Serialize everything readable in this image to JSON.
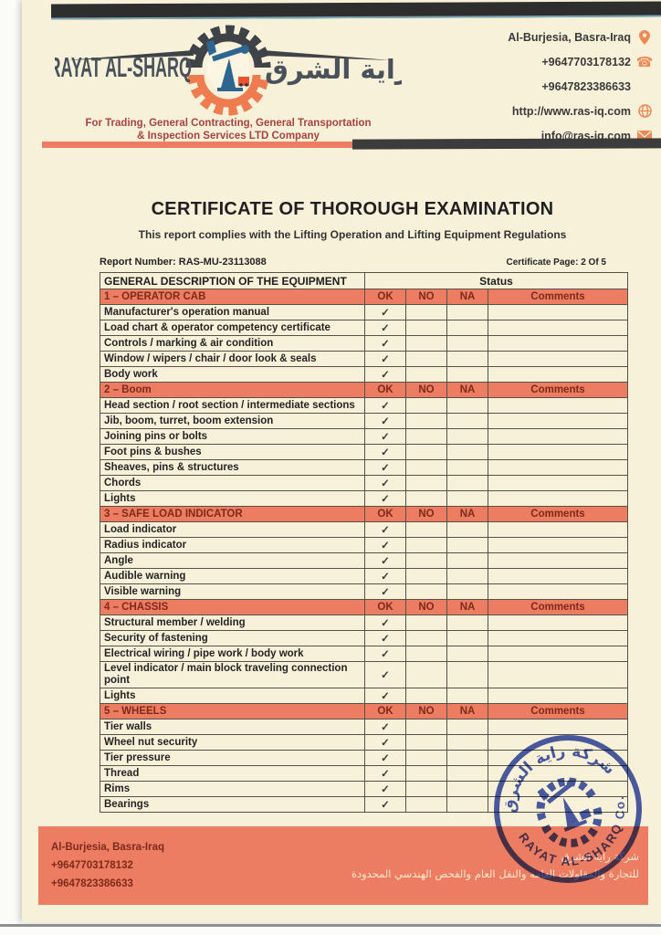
{
  "colors": {
    "accent_salmon": "#ed7d62",
    "maroon": "#7d2a1a",
    "stamp_blue": "#3b4fae",
    "page_cream": "#f8f1da",
    "dark_bar": "#2e2e2e",
    "tagline_red": "#a8433c",
    "logo_slate": "#49525b",
    "logo_orange": "#ef7b50",
    "pump_blue": "#2f6690"
  },
  "header": {
    "logo": {
      "latin": "RAYAT AL-SHARQ",
      "arabic": "راية الشرق",
      "tagline_line1": "For Trading, General Contracting, General Transportation",
      "tagline_line2": "& Inspection Services LTD Company"
    },
    "contact": [
      {
        "text": "Al-Burjesia, Basra-Iraq",
        "icon": "location-pin-icon"
      },
      {
        "text": "+9647703178132",
        "icon": "phone-icon"
      },
      {
        "text": "+9647823386633",
        "icon": ""
      },
      {
        "text": "http://www.ras-iq.com",
        "icon": "globe-icon"
      },
      {
        "text": "info@ras-iq.com",
        "icon": "envelope-icon"
      }
    ]
  },
  "title": "CERTIFICATE OF THOROUGH EXAMINATION",
  "subtitle": "This report complies with the Lifting Operation and Lifting Equipment Regulations",
  "report": {
    "number_label": "Report Number:",
    "number": "RAS-MU-23113088",
    "page_label": "Certificate Page:",
    "page": "2 Of 5"
  },
  "table": {
    "desc_header": "GENERAL DESCRIPTION OF THE EQUIPMENT",
    "status_header": "Status",
    "columns": [
      "OK",
      "NO",
      "NA",
      "Comments"
    ],
    "sections": [
      {
        "title": "1 – OPERATOR CAB",
        "rows": [
          {
            "label": "Manufacturer's operation manual",
            "ok": "✓",
            "no": "",
            "na": "",
            "comments": ""
          },
          {
            "label": "Load chart & operator competency certificate",
            "ok": "✓",
            "no": "",
            "na": "",
            "comments": ""
          },
          {
            "label": "Controls / marking & air condition",
            "ok": "✓",
            "no": "",
            "na": "",
            "comments": ""
          },
          {
            "label": "Window / wipers / chair / door look & seals",
            "ok": "✓",
            "no": "",
            "na": "",
            "comments": ""
          },
          {
            "label": "Body work",
            "ok": "✓",
            "no": "",
            "na": "",
            "comments": ""
          }
        ]
      },
      {
        "title": "2 – Boom",
        "rows": [
          {
            "label": "Head section / root section / intermediate sections",
            "ok": "✓",
            "no": "",
            "na": "",
            "comments": ""
          },
          {
            "label": "Jib, boom, turret, boom extension",
            "ok": "✓",
            "no": "",
            "na": "",
            "comments": ""
          },
          {
            "label": "Joining pins or bolts",
            "ok": "✓",
            "no": "",
            "na": "",
            "comments": ""
          },
          {
            "label": "Foot pins & bushes",
            "ok": "✓",
            "no": "",
            "na": "",
            "comments": ""
          },
          {
            "label": "Sheaves, pins & structures",
            "ok": "✓",
            "no": "",
            "na": "",
            "comments": ""
          },
          {
            "label": "Chords",
            "ok": "✓",
            "no": "",
            "na": "",
            "comments": ""
          },
          {
            "label": "Lights",
            "ok": "✓",
            "no": "",
            "na": "",
            "comments": ""
          }
        ]
      },
      {
        "title": "3 – SAFE LOAD INDICATOR",
        "rows": [
          {
            "label": "Load indicator",
            "ok": "✓",
            "no": "",
            "na": "",
            "comments": ""
          },
          {
            "label": "Radius indicator",
            "ok": "✓",
            "no": "",
            "na": "",
            "comments": ""
          },
          {
            "label": "Angle",
            "ok": "✓",
            "no": "",
            "na": "",
            "comments": ""
          },
          {
            "label": "Audible warning",
            "ok": "✓",
            "no": "",
            "na": "",
            "comments": ""
          },
          {
            "label": "Visible warning",
            "ok": "✓",
            "no": "",
            "na": "",
            "comments": ""
          }
        ]
      },
      {
        "title": "4 – CHASSIS",
        "rows": [
          {
            "label": "Structural member / welding",
            "ok": "✓",
            "no": "",
            "na": "",
            "comments": ""
          },
          {
            "label": "Security of fastening",
            "ok": "✓",
            "no": "",
            "na": "",
            "comments": ""
          },
          {
            "label": "Electrical wiring / pipe work / body work",
            "ok": "✓",
            "no": "",
            "na": "",
            "comments": ""
          },
          {
            "label": "Level indicator / main block traveling connection point",
            "ok": "✓",
            "no": "",
            "na": "",
            "comments": "",
            "tall": true
          },
          {
            "label": "Lights",
            "ok": "✓",
            "no": "",
            "na": "",
            "comments": ""
          }
        ]
      },
      {
        "title": "5 – WHEELS",
        "rows": [
          {
            "label": "Tier walls",
            "ok": "✓",
            "no": "",
            "na": "",
            "comments": ""
          },
          {
            "label": "Wheel nut security",
            "ok": "✓",
            "no": "",
            "na": "",
            "comments": ""
          },
          {
            "label": "Tier pressure",
            "ok": "✓",
            "no": "",
            "na": "",
            "comments": ""
          },
          {
            "label": "Thread",
            "ok": "✓",
            "no": "",
            "na": "",
            "comments": ""
          },
          {
            "label": "Rims",
            "ok": "✓",
            "no": "",
            "na": "",
            "comments": ""
          },
          {
            "label": "Bearings",
            "ok": "✓",
            "no": "",
            "na": "",
            "comments": ""
          }
        ]
      }
    ]
  },
  "stamp": {
    "arabic": "شركة راية الشرق",
    "latin": "RAYAT AL-SHARQ Co."
  },
  "footer": {
    "address": "Al-Burjesia, Basra-Iraq",
    "phone1": "+9647703178132",
    "phone2": "+9647823386633",
    "arabic_line1": "شركة راية الشرق",
    "arabic_line2": "للتجارة والمقاولات العامة والنقل العام والفحص الهندسي المحدودة"
  }
}
